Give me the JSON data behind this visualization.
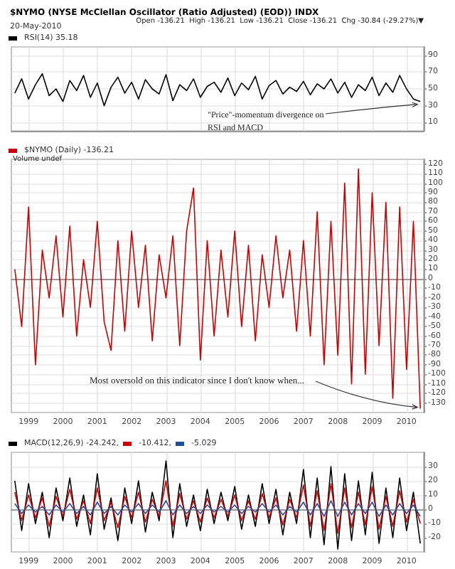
{
  "chart_data": [
    {
      "type": "line",
      "title": "$NYMO (NYSE McClellan Oscillator (Ratio Adjusted) (EOD)) INDX",
      "subtitle": "20-May-2010",
      "annotations": [
        "Open -136.21  High -136.21  Low -136.21  Close -136.21  Chg -30.84 (-29.27%)▼",
        {
          "text": "\"Price\"-momentum divergence on\nRSI and MACD",
          "x": 2010.4,
          "y": 35
        }
      ],
      "x": [
        1998.6,
        1998.8,
        1999,
        1999.2,
        1999.4,
        1999.6,
        1999.8,
        2000,
        2000.2,
        2000.4,
        2000.6,
        2000.8,
        2001,
        2001.2,
        2001.4,
        2001.6,
        2001.8,
        2002,
        2002.2,
        2002.4,
        2002.6,
        2002.8,
        2003,
        2003.2,
        2003.4,
        2003.6,
        2003.8,
        2004,
        2004.2,
        2004.4,
        2004.6,
        2004.8,
        2005,
        2005.2,
        2005.4,
        2005.6,
        2005.8,
        2006,
        2006.2,
        2006.4,
        2006.6,
        2006.8,
        2007,
        2007.2,
        2007.4,
        2007.6,
        2007.8,
        2008,
        2008.2,
        2008.4,
        2008.6,
        2008.8,
        2009,
        2009.2,
        2009.4,
        2009.6,
        2009.8,
        2010,
        2010.2,
        2010.4
      ],
      "series": [
        {
          "name": "RSI(14) 35.18",
          "color": "#000000",
          "values": [
            45,
            62,
            38,
            55,
            68,
            42,
            50,
            35,
            60,
            48,
            66,
            40,
            57,
            30,
            52,
            64,
            45,
            58,
            38,
            61,
            50,
            44,
            67,
            36,
            55,
            48,
            62,
            40,
            53,
            58,
            46,
            63,
            42,
            57,
            49,
            65,
            38,
            54,
            60,
            44,
            52,
            47,
            59,
            43,
            56,
            50,
            62,
            45,
            58,
            40,
            55,
            48,
            64,
            42,
            57,
            46,
            66,
            50,
            38,
            35
          ]
        }
      ],
      "xlim": [
        1998.5,
        2010.5
      ],
      "xticks": [
        1999,
        2000,
        2001,
        2002,
        2003,
        2004,
        2005,
        2006,
        2007,
        2008,
        2009,
        2010
      ],
      "ylim": [
        0,
        100
      ],
      "yticks": [
        10,
        30,
        50,
        70,
        90
      ],
      "grid": true,
      "legend": "top left",
      "tick_labels": "y",
      "marker": "none"
    },
    {
      "type": "line",
      "annotations": [
        "Volume undef",
        {
          "text": "Most oversold on this indicator since I don't know when...",
          "x": 2010.4,
          "y": -136
        }
      ],
      "x": [
        1998.6,
        1998.8,
        1999,
        1999.2,
        1999.4,
        1999.6,
        1999.8,
        2000,
        2000.2,
        2000.4,
        2000.6,
        2000.8,
        2001,
        2001.2,
        2001.4,
        2001.6,
        2001.8,
        2002,
        2002.2,
        2002.4,
        2002.6,
        2002.8,
        2003,
        2003.2,
        2003.4,
        2003.6,
        2003.8,
        2004,
        2004.2,
        2004.4,
        2004.6,
        2004.8,
        2005,
        2005.2,
        2005.4,
        2005.6,
        2005.8,
        2006,
        2006.2,
        2006.4,
        2006.6,
        2006.8,
        2007,
        2007.2,
        2007.4,
        2007.6,
        2007.8,
        2008,
        2008.2,
        2008.4,
        2008.6,
        2008.8,
        2009,
        2009.2,
        2009.4,
        2009.6,
        2009.8,
        2010,
        2010.2,
        2010.4
      ],
      "series": [
        {
          "name": "$NYMO (Daily) -136.21",
          "color": "#cc0000",
          "values": [
            10,
            -50,
            75,
            -90,
            30,
            -20,
            45,
            -40,
            55,
            -60,
            20,
            -30,
            60,
            -45,
            -75,
            40,
            -55,
            50,
            -30,
            35,
            -65,
            25,
            -20,
            45,
            -70,
            50,
            95,
            -85,
            40,
            -60,
            30,
            -40,
            50,
            -50,
            35,
            -65,
            25,
            -30,
            45,
            -20,
            30,
            -55,
            40,
            -60,
            70,
            -90,
            60,
            -80,
            100,
            -110,
            115,
            -100,
            90,
            -70,
            80,
            -125,
            75,
            -95,
            60,
            -136
          ]
        }
      ],
      "xlim": [
        1998.5,
        2010.5
      ],
      "xticks": [
        1999,
        2000,
        2001,
        2002,
        2003,
        2004,
        2005,
        2006,
        2007,
        2008,
        2009,
        2010
      ],
      "ylim": [
        -140,
        125
      ],
      "yticks": [
        120,
        110,
        100,
        90,
        80,
        70,
        60,
        50,
        40,
        30,
        20,
        10,
        0,
        -10,
        -20,
        -30,
        -40,
        -50,
        -60,
        -70,
        -80,
        -90,
        -100,
        -110,
        -120,
        -130
      ],
      "grid": true,
      "legend": "top left",
      "marker": "none"
    },
    {
      "type": "line",
      "x": [
        1998.6,
        1998.8,
        1999,
        1999.2,
        1999.4,
        1999.6,
        1999.8,
        2000,
        2000.2,
        2000.4,
        2000.6,
        2000.8,
        2001,
        2001.2,
        2001.4,
        2001.6,
        2001.8,
        2002,
        2002.2,
        2002.4,
        2002.6,
        2002.8,
        2003,
        2003.2,
        2003.4,
        2003.6,
        2003.8,
        2004,
        2004.2,
        2004.4,
        2004.6,
        2004.8,
        2005,
        2005.2,
        2005.4,
        2005.6,
        2005.8,
        2006,
        2006.2,
        2006.4,
        2006.6,
        2006.8,
        2007,
        2007.2,
        2007.4,
        2007.6,
        2007.8,
        2008,
        2008.2,
        2008.4,
        2008.6,
        2008.8,
        2009,
        2009.2,
        2009.4,
        2009.6,
        2009.8,
        2010,
        2010.2,
        2010.4
      ],
      "series": [
        {
          "name": "MACD(12,26,9) -24.242,",
          "color": "#000000",
          "values": [
            20,
            -15,
            18,
            -10,
            12,
            -20,
            15,
            -8,
            22,
            -12,
            10,
            -18,
            25,
            -14,
            8,
            -22,
            15,
            -10,
            20,
            -16,
            12,
            -8,
            34,
            -20,
            18,
            -12,
            10,
            -15,
            14,
            -10,
            12,
            -8,
            16,
            -14,
            10,
            -12,
            18,
            -10,
            14,
            -18,
            12,
            -10,
            28,
            -20,
            22,
            -25,
            30,
            -28,
            25,
            -22,
            20,
            -18,
            26,
            -24,
            15,
            -20,
            22,
            -15,
            12,
            -24
          ]
        },
        {
          "name": "-10.412,",
          "color": "#cc0000",
          "values": [
            12,
            -8,
            10,
            -6,
            8,
            -12,
            9,
            -5,
            14,
            -7,
            6,
            -10,
            15,
            -8,
            5,
            -13,
            9,
            -6,
            12,
            -9,
            7,
            -5,
            20,
            -12,
            11,
            -7,
            6,
            -9,
            8,
            -6,
            7,
            -5,
            10,
            -8,
            6,
            -7,
            11,
            -6,
            8,
            -11,
            7,
            -6,
            17,
            -12,
            13,
            -15,
            18,
            -17,
            15,
            -13,
            12,
            -11,
            16,
            -14,
            9,
            -12,
            13,
            -9,
            7,
            -10
          ]
        },
        {
          "name": "-5.029",
          "color": "#1f4e9c",
          "values": [
            4,
            -3,
            3,
            -2,
            2,
            -4,
            3,
            -2,
            4,
            -3,
            2,
            -4,
            5,
            -3,
            2,
            -4,
            3,
            -2,
            4,
            -3,
            3,
            -2,
            6,
            -4,
            3,
            -3,
            2,
            -3,
            3,
            -2,
            2,
            -2,
            3,
            -3,
            2,
            -2,
            4,
            -2,
            3,
            -4,
            2,
            -2,
            5,
            -4,
            4,
            -5,
            6,
            -5,
            5,
            -4,
            4,
            -3,
            5,
            -5,
            3,
            -4,
            4,
            -3,
            3,
            -5
          ]
        }
      ],
      "xlim": [
        1998.5,
        2010.5
      ],
      "xticks": [
        1999,
        2000,
        2001,
        2002,
        2003,
        2004,
        2005,
        2006,
        2007,
        2008,
        2009,
        2010
      ],
      "ylim": [
        -30,
        40
      ],
      "yticks": [
        30,
        20,
        10,
        0,
        -10,
        -20
      ],
      "grid": true,
      "legend": "top left",
      "marker": "none"
    }
  ]
}
